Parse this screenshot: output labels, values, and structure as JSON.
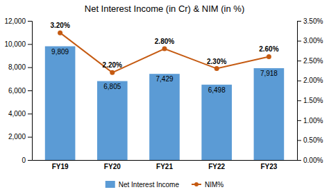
{
  "chart_data": {
    "type": "bar",
    "title": "Net Interest Income (in Cr) & NIM (in %)",
    "categories": [
      "FY19",
      "FY20",
      "FY21",
      "FY22",
      "FY23"
    ],
    "series": [
      {
        "name": "Net Interest Income",
        "type": "bar",
        "color": "#5B9BD5",
        "values": [
          9809,
          6805,
          7429,
          6498,
          7918
        ],
        "value_labels": [
          "9,809",
          "6,805",
          "7,429",
          "6,498",
          "7,918"
        ]
      },
      {
        "name": "NIM%",
        "type": "line",
        "color": "#C55A11",
        "marker": "circle",
        "axis": "y2",
        "values": [
          3.2,
          2.2,
          2.8,
          2.3,
          2.6
        ],
        "value_labels": [
          "3.20%",
          "2.20%",
          "2.80%",
          "2.30%",
          "2.60%"
        ]
      }
    ],
    "ylim": [
      0,
      12000
    ],
    "yticks": [
      0,
      {
        "value": 2000,
        "label": "2,000"
      },
      {
        "value": 4000,
        "label": "4,000"
      },
      {
        "value": 6000,
        "label": "6,000"
      },
      {
        "value": 8000,
        "label": "8,000"
      },
      {
        "value": 10000,
        "label": "10,000"
      },
      {
        "value": 12000,
        "label": "12,000"
      }
    ],
    "y2lim": [
      0.0,
      3.5
    ],
    "y2ticks": [
      {
        "value": 0.0,
        "label": "0.00%"
      },
      {
        "value": 0.5,
        "label": "0.50%"
      },
      {
        "value": 1.0,
        "label": "1.00%"
      },
      {
        "value": 1.5,
        "label": "1.50%"
      },
      {
        "value": 2.0,
        "label": "2.00%"
      },
      {
        "value": 2.5,
        "label": "2.50%"
      },
      {
        "value": 3.0,
        "label": "3.00%"
      },
      {
        "value": 3.5,
        "label": "3.50%"
      }
    ],
    "grid": false,
    "legend": "bottom",
    "data_labels": true
  }
}
